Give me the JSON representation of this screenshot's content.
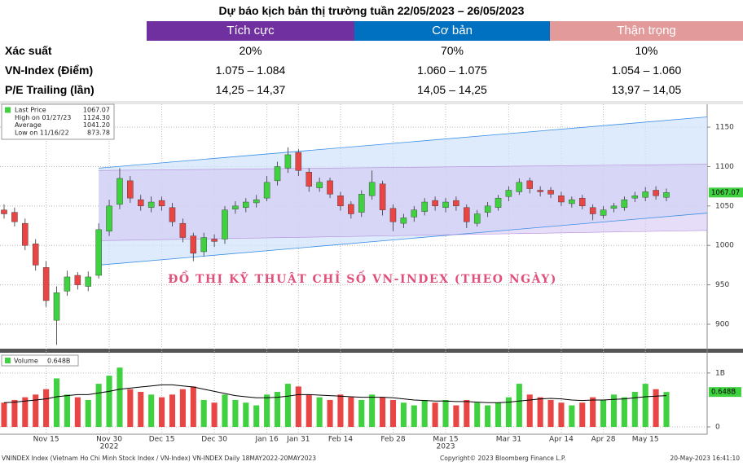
{
  "table": {
    "title": "Dự báo kịch bản thị trường tuần 22/05/2023 – 26/05/2023",
    "headers": [
      {
        "label": "Tích cực",
        "color": "#7030a0"
      },
      {
        "label": "Cơ bản",
        "color": "#0070c0"
      },
      {
        "label": "Thận trọng",
        "color": "#e29a9a"
      }
    ],
    "rows": [
      [
        "Xác suất",
        "20%",
        "70%",
        "10%"
      ],
      [
        "VN-Index (Điểm)",
        "1.075 – 1.084",
        "1.060 – 1.075",
        "1.054 – 1.060"
      ],
      [
        "P/E Trailing (lần)",
        "14,25 – 14,37",
        "14,05 – 14,25",
        "13,97 – 14,05"
      ]
    ]
  },
  "chart_data": [
    {
      "type": "candlestick",
      "annotation": "ĐỒ THỊ KỸ THUẬT CHỈ SỐ VN-INDEX (THEO NGÀY)",
      "up_color": "#3fd13f",
      "down_color": "#e84545",
      "grid": true,
      "stats": {
        "names": [
          "Last Price",
          "High on 01/27/23",
          "Average",
          "Low on 11/16/22"
        ],
        "values": [
          1067.07,
          1124.3,
          1041.2,
          873.78
        ],
        "value_labels": [
          "1067.07",
          "1124.30",
          "1041.20",
          "873.78"
        ]
      },
      "categories": [
        null,
        null,
        null,
        null,
        "Nov 15",
        null,
        null,
        null,
        null,
        null,
        "Nov 30",
        null,
        null,
        null,
        null,
        "Dec 15",
        null,
        null,
        null,
        null,
        "Dec 30",
        null,
        null,
        null,
        null,
        "Jan 16",
        null,
        null,
        "Jan 31",
        null,
        null,
        null,
        "Feb 14",
        null,
        null,
        null,
        null,
        "Feb 28",
        null,
        null,
        null,
        null,
        "Mar 15",
        null,
        null,
        null,
        null,
        null,
        "Mar 31",
        null,
        null,
        null,
        null,
        "Apr 14",
        null,
        null,
        null,
        "Apr 28",
        null,
        null,
        null,
        "May 15",
        null,
        null
      ],
      "category_years": [
        null,
        null,
        null,
        null,
        null,
        null,
        null,
        null,
        null,
        null,
        "2022",
        null,
        null,
        null,
        null,
        null,
        null,
        null,
        null,
        null,
        null,
        null,
        null,
        null,
        null,
        null,
        null,
        null,
        null,
        null,
        null,
        null,
        null,
        null,
        null,
        null,
        null,
        null,
        null,
        null,
        null,
        null,
        "2023",
        null,
        null,
        null,
        null,
        null,
        null,
        null,
        null,
        null,
        null,
        null,
        null,
        null,
        null,
        null,
        null,
        null,
        null,
        null,
        null,
        null
      ],
      "open": [
        1045,
        1042,
        1028,
        1002,
        972,
        905,
        942,
        962,
        948,
        962,
        1018,
        1052,
        1082,
        1058,
        1048,
        1057,
        1048,
        1028,
        1012,
        992,
        1008,
        1008,
        1046,
        1048,
        1054,
        1060,
        1082,
        1098,
        1118,
        1093,
        1073,
        1082,
        1063,
        1052,
        1042,
        1063,
        1078,
        1047,
        1028,
        1036,
        1043,
        1057,
        1048,
        1057,
        1048,
        1028,
        1042,
        1048,
        1062,
        1068,
        1082,
        1070,
        1070,
        1063,
        1053,
        1060,
        1048,
        1038,
        1047,
        1048,
        1060,
        1061,
        1070,
        1061
      ],
      "high": [
        1052,
        1048,
        1034,
        1008,
        980,
        948,
        968,
        966,
        967,
        1028,
        1058,
        1098,
        1088,
        1064,
        1062,
        1062,
        1054,
        1034,
        1016,
        1016,
        1014,
        1050,
        1056,
        1060,
        1064,
        1088,
        1106,
        1124.3,
        1122,
        1098,
        1086,
        1086,
        1068,
        1056,
        1070,
        1095,
        1082,
        1052,
        1040,
        1050,
        1060,
        1062,
        1060,
        1062,
        1052,
        1045,
        1055,
        1064,
        1075,
        1085,
        1086,
        1075,
        1074,
        1068,
        1062,
        1064,
        1052,
        1050,
        1054,
        1062,
        1068,
        1074,
        1075,
        1072
      ],
      "low": [
        1034,
        1024,
        994,
        968,
        922,
        873.78,
        936,
        944,
        942,
        958,
        1012,
        1046,
        1054,
        1044,
        1042,
        1044,
        1024,
        1004,
        980,
        986,
        998,
        1002,
        1040,
        1042,
        1048,
        1056,
        1076,
        1092,
        1088,
        1068,
        1068,
        1060,
        1044,
        1034,
        1036,
        1058,
        1038,
        1018,
        1022,
        1030,
        1038,
        1044,
        1042,
        1044,
        1022,
        1024,
        1036,
        1044,
        1056,
        1064,
        1066,
        1062,
        1060,
        1050,
        1048,
        1046,
        1032,
        1034,
        1042,
        1044,
        1055,
        1056,
        1058,
        1056
      ],
      "close": [
        1040,
        1030,
        1000,
        975,
        930,
        940,
        960,
        950,
        960,
        1020,
        1050,
        1085,
        1060,
        1050,
        1055,
        1050,
        1030,
        1010,
        990,
        1010,
        1005,
        1045,
        1050,
        1055,
        1058,
        1080,
        1100,
        1115,
        1095,
        1075,
        1080,
        1065,
        1050,
        1040,
        1065,
        1080,
        1045,
        1030,
        1035,
        1045,
        1055,
        1050,
        1055,
        1050,
        1030,
        1040,
        1050,
        1060,
        1070,
        1080,
        1072,
        1068,
        1065,
        1055,
        1058,
        1050,
        1040,
        1045,
        1050,
        1058,
        1063,
        1068,
        1063,
        1067.07
      ],
      "channel_upper": [
        1098,
        1163
      ],
      "channel_lower": [
        975,
        1041
      ],
      "band_upper": [
        1095,
        1103
      ],
      "band_lower": [
        1006,
        1019
      ],
      "ylim": [
        869,
        1179
      ],
      "yticks": [
        900,
        950,
        1000,
        1050,
        1100,
        1150
      ]
    },
    {
      "type": "volume",
      "series_name": "Volume",
      "last_value_label": "0.648B",
      "values": [
        0.45,
        0.5,
        0.55,
        0.6,
        0.7,
        0.9,
        0.6,
        0.55,
        0.5,
        0.8,
        0.95,
        1.1,
        0.7,
        0.65,
        0.6,
        0.55,
        0.6,
        0.7,
        0.75,
        0.5,
        0.45,
        0.6,
        0.5,
        0.45,
        0.4,
        0.6,
        0.65,
        0.8,
        0.75,
        0.6,
        0.55,
        0.5,
        0.6,
        0.55,
        0.5,
        0.6,
        0.55,
        0.5,
        0.45,
        0.4,
        0.5,
        0.45,
        0.5,
        0.4,
        0.5,
        0.45,
        0.4,
        0.45,
        0.55,
        0.8,
        0.6,
        0.55,
        0.5,
        0.45,
        0.4,
        0.45,
        0.55,
        0.5,
        0.6,
        0.55,
        0.65,
        0.8,
        0.7,
        0.648
      ],
      "ma": [
        0.45,
        0.46,
        0.48,
        0.5,
        0.52,
        0.56,
        0.58,
        0.6,
        0.6,
        0.63,
        0.66,
        0.7,
        0.72,
        0.74,
        0.76,
        0.78,
        0.78,
        0.76,
        0.74,
        0.7,
        0.66,
        0.62,
        0.58,
        0.56,
        0.54,
        0.54,
        0.55,
        0.57,
        0.6,
        0.6,
        0.59,
        0.58,
        0.57,
        0.56,
        0.55,
        0.55,
        0.55,
        0.54,
        0.52,
        0.5,
        0.49,
        0.48,
        0.48,
        0.47,
        0.47,
        0.46,
        0.45,
        0.45,
        0.46,
        0.48,
        0.5,
        0.52,
        0.53,
        0.52,
        0.5,
        0.49,
        0.5,
        0.5,
        0.51,
        0.52,
        0.54,
        0.56,
        0.57,
        0.58
      ],
      "ylim": [
        -0.09,
        1.33
      ],
      "yticks": [
        0,
        {
          "value": 1,
          "label": "1B"
        }
      ]
    }
  ],
  "footer": {
    "left": "VNINDEX Index (Vietnam Ho Chi Minh Stock Index / VN-Index) VN-INDEX  Daily 18MAY2022-20MAY2023",
    "center": "Copyright© 2023 Bloomberg Finance L.P.",
    "right": "20-May-2023 16:41:10"
  }
}
